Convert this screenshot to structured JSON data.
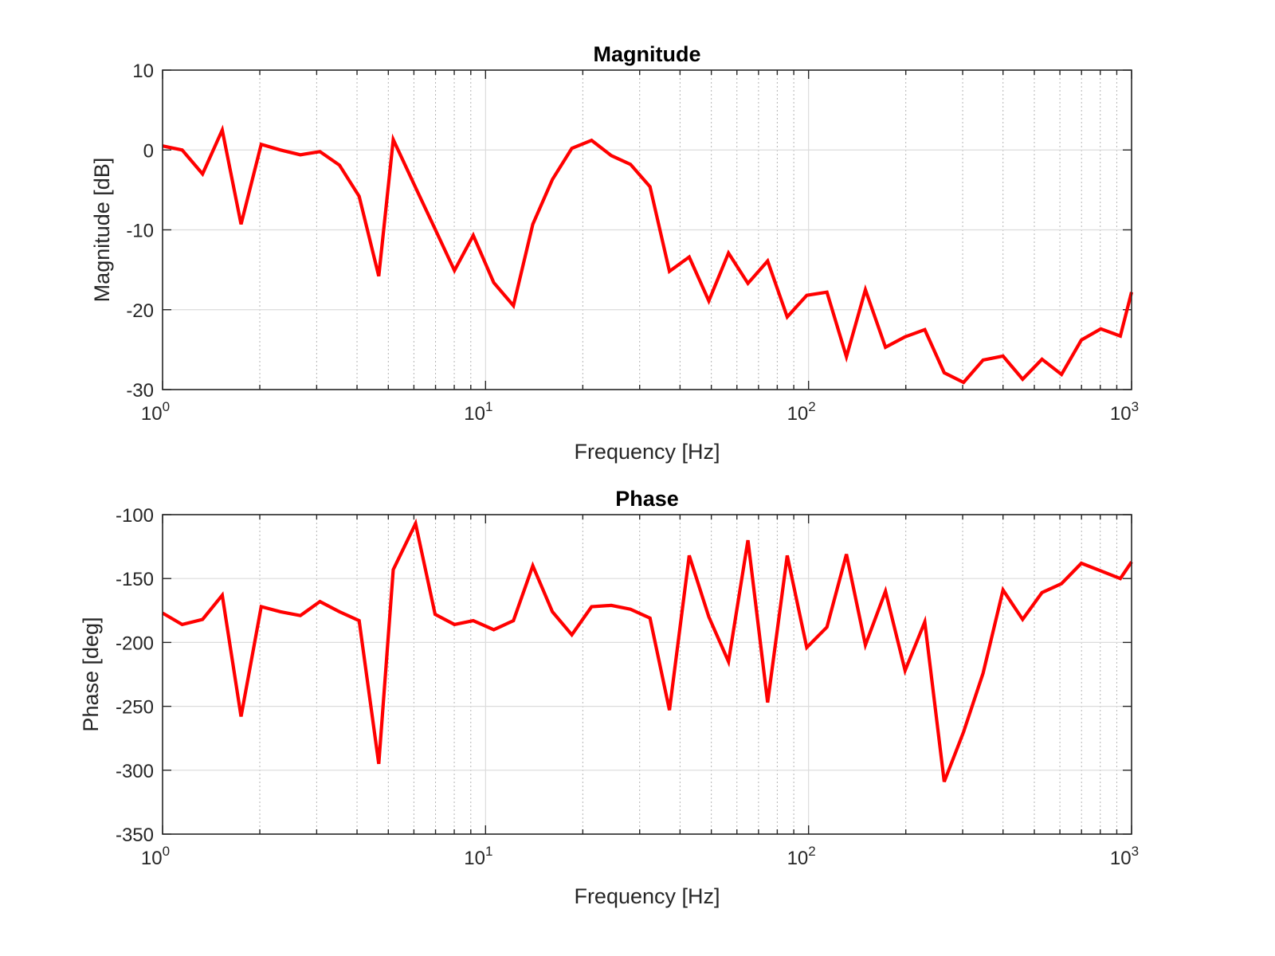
{
  "chart_data": [
    {
      "type": "line",
      "title": "Magnitude",
      "xlabel": "Frequency [Hz]",
      "ylabel": "Magnitude [dB]",
      "xscale": "log",
      "xlim": [
        1,
        1000
      ],
      "ylim": [
        -30,
        10
      ],
      "yticks": [
        "10",
        "0",
        "-10",
        "-20",
        "-30"
      ],
      "xticks": [
        {
          "base": "10",
          "exp": "0"
        },
        {
          "base": "10",
          "exp": "1"
        },
        {
          "base": "10",
          "exp": "2"
        },
        {
          "base": "10",
          "exp": "3"
        }
      ],
      "grid": true,
      "color": "#ff0000",
      "x": [
        1.0,
        1.15,
        1.33,
        1.53,
        1.75,
        2.02,
        2.32,
        2.67,
        3.07,
        3.53,
        4.06,
        4.67,
        5.18,
        6.07,
        6.98,
        8.01,
        9.16,
        10.6,
        12.2,
        14.0,
        16.1,
        18.5,
        21.3,
        24.5,
        28.1,
        32.3,
        37.1,
        42.7,
        49.1,
        56.5,
        64.9,
        74.7,
        85.9,
        98.7,
        114,
        131,
        150,
        173,
        199,
        229,
        263,
        302,
        347,
        400,
        460,
        528,
        607,
        699,
        803,
        923,
        1000
      ],
      "y": [
        0.5,
        0.0,
        -3.0,
        2.5,
        -9.3,
        0.7,
        0.0,
        -0.6,
        -0.2,
        -1.9,
        -5.8,
        -15.8,
        1.3,
        -4.7,
        -9.9,
        -15.1,
        -10.7,
        -16.6,
        -19.5,
        -9.3,
        -3.7,
        0.2,
        1.2,
        -0.7,
        -1.8,
        -4.6,
        -15.2,
        -13.4,
        -18.9,
        -12.9,
        -16.7,
        -13.9,
        -20.9,
        -18.2,
        -17.8,
        -25.9,
        -17.5,
        -24.7,
        -23.4,
        -22.5,
        -27.9,
        -29.1,
        -26.3,
        -25.8,
        -28.7,
        -26.2,
        -28.1,
        -23.8,
        -22.4,
        -23.3,
        -17.8
      ]
    },
    {
      "type": "line",
      "title": "Phase",
      "xlabel": "Frequency [Hz]",
      "ylabel": "Phase [deg]",
      "xscale": "log",
      "xlim": [
        1,
        1000
      ],
      "ylim": [
        -350,
        -100
      ],
      "yticks": [
        "-100",
        "-150",
        "-200",
        "-250",
        "-300",
        "-350"
      ],
      "xticks": [
        {
          "base": "10",
          "exp": "0"
        },
        {
          "base": "10",
          "exp": "1"
        },
        {
          "base": "10",
          "exp": "2"
        },
        {
          "base": "10",
          "exp": "3"
        }
      ],
      "grid": true,
      "color": "#ff0000",
      "x": [
        1.0,
        1.15,
        1.33,
        1.53,
        1.75,
        2.02,
        2.32,
        2.67,
        3.07,
        3.53,
        4.06,
        4.67,
        5.18,
        6.07,
        6.98,
        8.01,
        9.16,
        10.6,
        12.2,
        14.0,
        16.1,
        18.5,
        21.3,
        24.5,
        28.1,
        32.3,
        37.1,
        42.7,
        49.1,
        56.5,
        64.9,
        74.7,
        85.9,
        98.7,
        114,
        131,
        150,
        173,
        199,
        229,
        263,
        302,
        347,
        400,
        460,
        528,
        607,
        699,
        803,
        923,
        1000
      ],
      "y": [
        -177,
        -186,
        -182,
        -163,
        -258,
        -172,
        -176,
        -179,
        -168,
        -176,
        -183,
        -295,
        -143,
        -107,
        -178,
        -186,
        -183,
        -190,
        -183,
        -140,
        -176,
        -194,
        -172,
        -171,
        -174,
        -181,
        -253,
        -132,
        -180,
        -215,
        -120,
        -247,
        -132,
        -204,
        -188,
        -131,
        -202,
        -160,
        -222,
        -184,
        -309,
        -270,
        -224,
        -159,
        -182,
        -161,
        -154,
        -138,
        -144,
        -150,
        -137
      ]
    }
  ]
}
